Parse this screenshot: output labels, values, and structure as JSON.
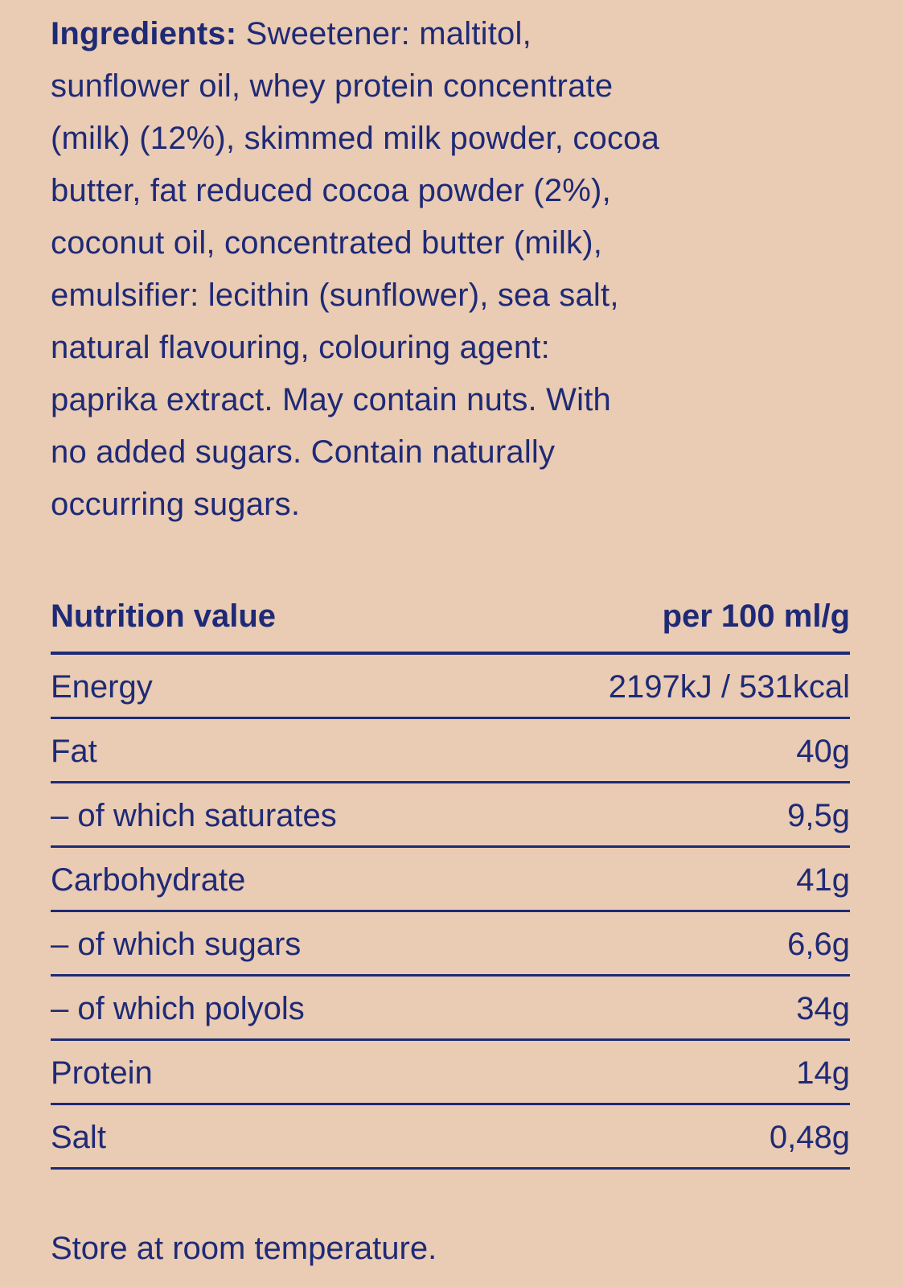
{
  "page": {
    "background_color": "#eacbb3",
    "text_color": "#1e2a76"
  },
  "ingredients": {
    "label": "Ingredients:",
    "lines": [
      " Sweetener: maltitol,",
      "sunflower oil, whey protein concentrate",
      "(milk) (12%), skimmed milk powder, cocoa",
      "butter, fat reduced cocoa powder (2%),",
      "coconut oil, concentrated butter (milk),",
      "emulsifier: lecithin (sunflower), sea salt,",
      "natural flavouring, colouring agent:",
      "paprika extract. May contain nuts. With",
      "no added sugars. Contain naturally",
      "occurring sugars."
    ]
  },
  "nutrition": {
    "header": {
      "label": "Nutrition value",
      "unit": "per 100 ml/g"
    },
    "rows": [
      {
        "label": "Energy",
        "value": "2197kJ / 531kcal"
      },
      {
        "label": "Fat",
        "value": "40g"
      },
      {
        "label": "– of which saturates",
        "value": "9,5g"
      },
      {
        "label": "Carbohydrate",
        "value": "41g"
      },
      {
        "label": "– of which sugars",
        "value": "6,6g"
      },
      {
        "label": "– of which polyols",
        "value": "34g"
      },
      {
        "label": "Protein",
        "value": "14g"
      },
      {
        "label": "Salt",
        "value": "0,48g"
      }
    ]
  },
  "storage": {
    "text": "Store at room temperature."
  }
}
